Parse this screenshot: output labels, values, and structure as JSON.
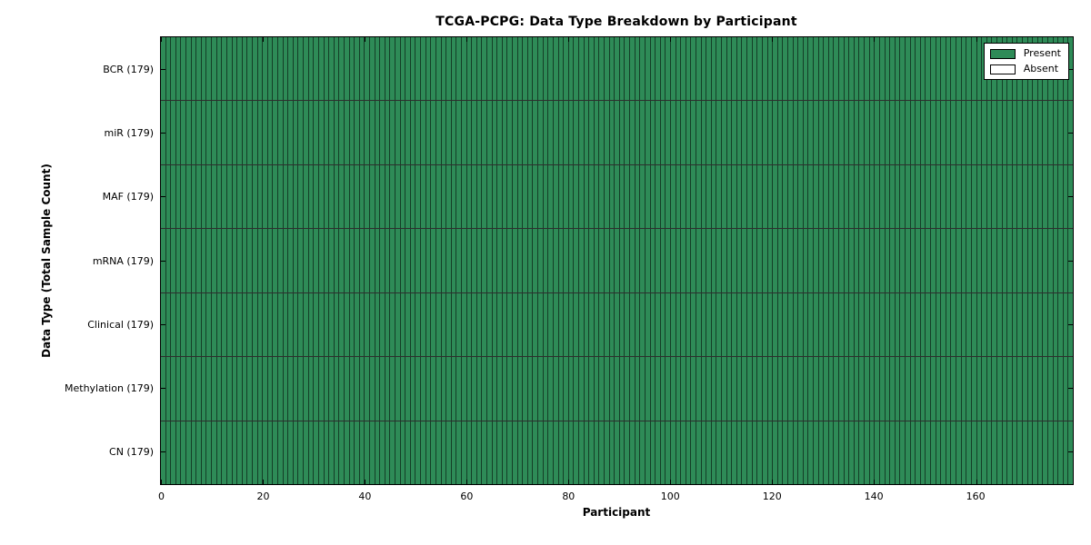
{
  "chart_data": {
    "type": "heatmap",
    "title": "TCGA-PCPG: Data Type Breakdown by Participant",
    "xlabel": "Participant",
    "ylabel": "Data Type (Total Sample Count)",
    "n_participants": 179,
    "n_rows": 7,
    "xlim": [
      0,
      179
    ],
    "x_ticks": [
      0,
      20,
      40,
      60,
      80,
      100,
      120,
      140,
      160
    ],
    "x_tick_labels": [
      "0",
      "20",
      "40",
      "60",
      "80",
      "100",
      "120",
      "140",
      "160"
    ],
    "rows": [
      {
        "label": "BCR (179)",
        "data_type": "BCR",
        "total_sample_count": 179,
        "present_count": 179,
        "absent_count": 0,
        "absent_participants": []
      },
      {
        "label": "miR (179)",
        "data_type": "miR",
        "total_sample_count": 179,
        "present_count": 179,
        "absent_count": 0,
        "absent_participants": []
      },
      {
        "label": "MAF (179)",
        "data_type": "MAF",
        "total_sample_count": 179,
        "present_count": 179,
        "absent_count": 0,
        "absent_participants": []
      },
      {
        "label": "mRNA (179)",
        "data_type": "mRNA",
        "total_sample_count": 179,
        "present_count": 179,
        "absent_count": 0,
        "absent_participants": []
      },
      {
        "label": "Clinical (179)",
        "data_type": "Clinical",
        "total_sample_count": 179,
        "present_count": 179,
        "absent_count": 0,
        "absent_participants": []
      },
      {
        "label": "Methylation (179)",
        "data_type": "Methylation",
        "total_sample_count": 179,
        "present_count": 179,
        "absent_count": 0,
        "absent_participants": []
      },
      {
        "label": "CN (179)",
        "data_type": "CN",
        "total_sample_count": 179,
        "present_count": 179,
        "absent_count": 0,
        "absent_participants": []
      }
    ],
    "legend": [
      {
        "label": "Present",
        "color": "#2e8b57"
      },
      {
        "label": "Absent",
        "color": "#ffffff"
      }
    ],
    "legend_position": "upper right",
    "colors": {
      "present": "#2e8b57",
      "absent": "#ffffff",
      "edge": "#000000",
      "background": "#ffffff"
    },
    "grid": "cell-borders"
  }
}
